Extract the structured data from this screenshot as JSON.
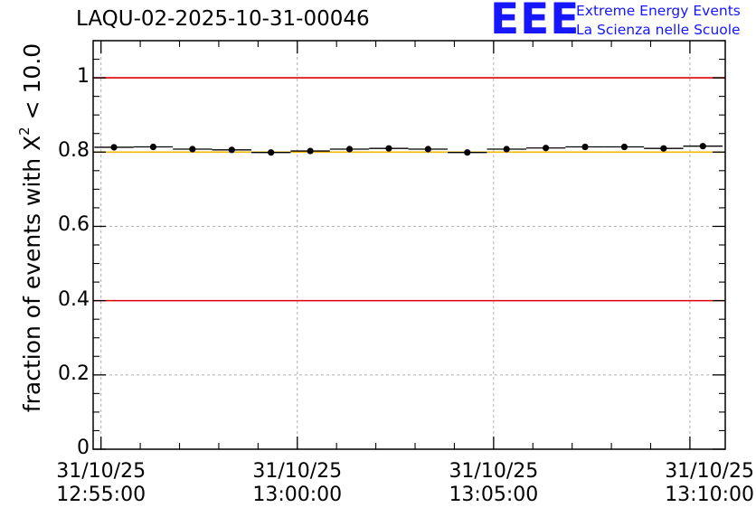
{
  "chart_data": {
    "type": "scatter",
    "title": "LAQU-02-2025-10-31-00046",
    "ylabel_prefix": "fraction of events with X",
    "ylabel_sup": "2",
    "ylabel_suffix": " < 10.0",
    "xlabel": "",
    "ylim": [
      0,
      1.1
    ],
    "yticks": [
      0,
      0.2,
      0.4,
      0.6,
      0.8,
      1
    ],
    "ytick_labels": [
      "0",
      "0.2",
      "0.4",
      "0.6",
      "0.8",
      "1"
    ],
    "xlim_minutes": [
      -0.2,
      15.9
    ],
    "xticks": [
      {
        "minute": 0,
        "date": "31/10/25",
        "time": "12:55:00"
      },
      {
        "minute": 5,
        "date": "31/10/25",
        "time": "13:00:00"
      },
      {
        "minute": 10,
        "date": "31/10/25",
        "time": "13:05:00"
      },
      {
        "minute": 15,
        "date": "31/10/25",
        "time": "13:10:00"
      }
    ],
    "bin_width_minutes": 1,
    "series": [
      {
        "name": "fraction",
        "x_minutes": [
          0.33,
          1.33,
          2.33,
          3.33,
          4.33,
          5.33,
          6.33,
          7.33,
          8.33,
          9.33,
          10.33,
          11.33,
          12.33,
          13.33,
          14.33,
          15.33
        ],
        "values": [
          0.813,
          0.814,
          0.808,
          0.806,
          0.799,
          0.803,
          0.808,
          0.81,
          0.808,
          0.799,
          0.808,
          0.811,
          0.814,
          0.814,
          0.81,
          0.816
        ]
      }
    ],
    "reference_lines": [
      {
        "y": 1.0,
        "color": "#e00000"
      },
      {
        "y": 0.4,
        "color": "#e00000"
      },
      {
        "y": 0.8,
        "color": "#f0b800"
      }
    ],
    "grid": true
  },
  "logo": {
    "mark": "EEE",
    "line1": "Extreme Energy Events",
    "line2": "La Scienza nelle Scuole"
  }
}
